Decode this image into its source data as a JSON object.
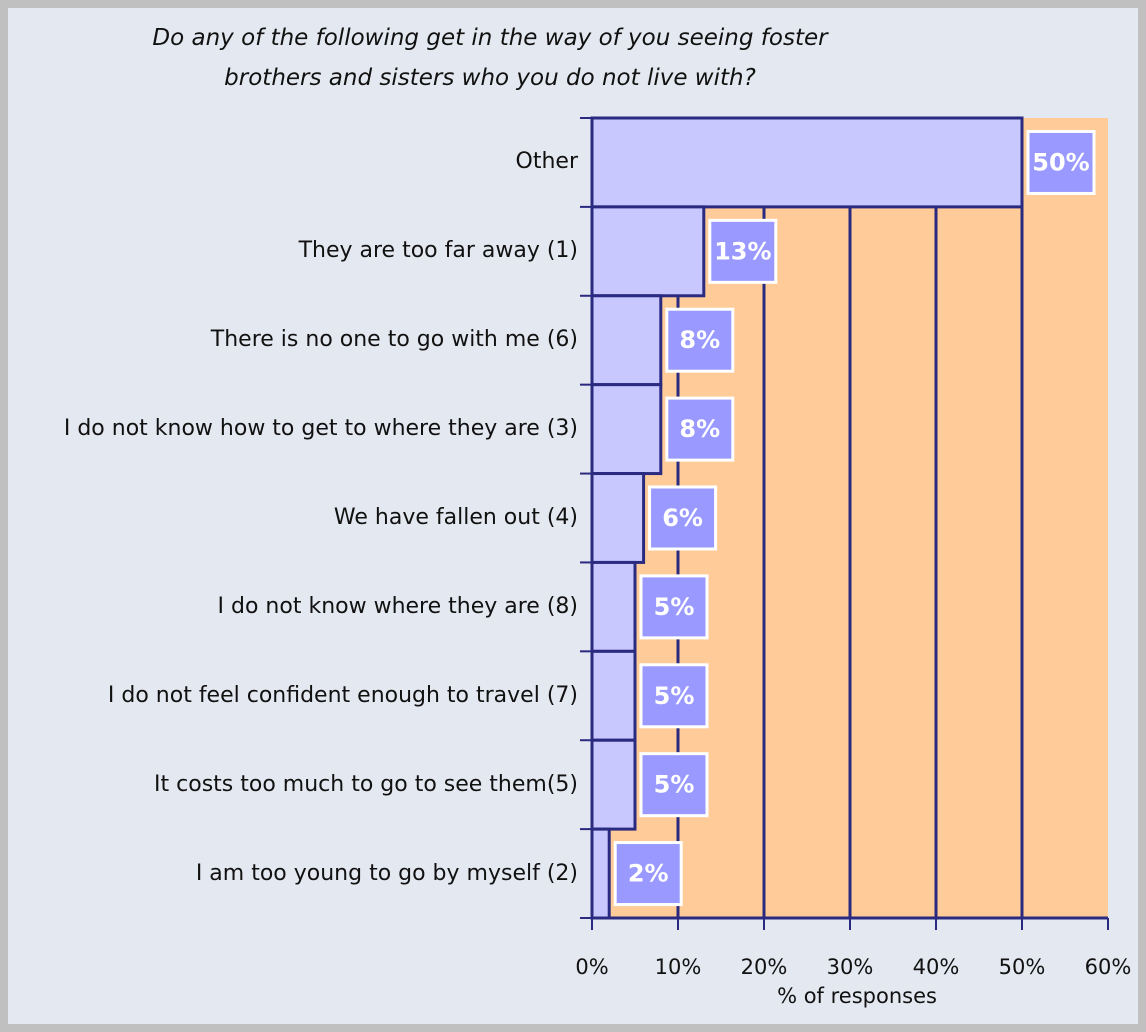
{
  "chart_data": {
    "type": "bar",
    "orientation": "horizontal",
    "title": "Do any of the following get in the way of you seeing foster brothers and sisters who you do not live with?",
    "x_label": "% of responses",
    "categories": [
      "Other",
      "They are too far away (1)",
      "There is no one to go with me (6)",
      "I do not know how to get to where they are (3)",
      "We have fallen out (4)",
      "I do not know where they are (8)",
      "I do not feel confident enough to travel (7)",
      "It costs too much to go to see them(5)",
      "I am too young to go by myself (2)"
    ],
    "values": [
      50,
      13,
      8,
      8,
      6,
      5,
      5,
      5,
      2
    ],
    "value_labels": [
      "50%",
      "13%",
      "8%",
      "8%",
      "6%",
      "5%",
      "5%",
      "5%",
      "2%"
    ],
    "color": "#c8c8ff",
    "xlim": [
      0,
      60
    ],
    "xticks": [
      {
        "value": 0,
        "label": "0%"
      },
      {
        "value": 10,
        "label": "10%"
      },
      {
        "value": 20,
        "label": "20%"
      },
      {
        "value": 30,
        "label": "30%"
      },
      {
        "value": 40,
        "label": "40%"
      },
      {
        "value": 50,
        "label": "50%"
      },
      {
        "value": 60,
        "label": "60%"
      }
    ],
    "grid": true
  }
}
